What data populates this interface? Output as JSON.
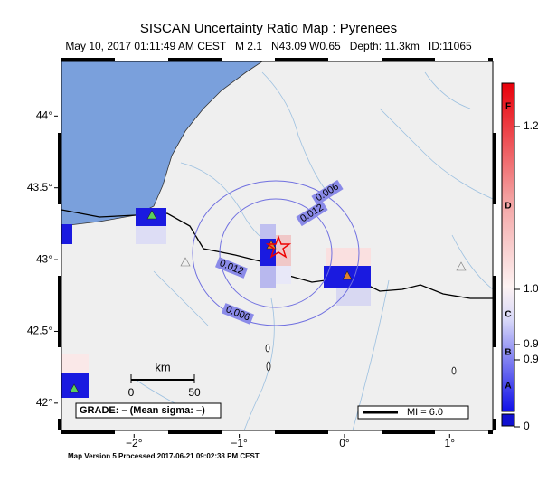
{
  "header": {
    "title": "SISCAN Uncertainty Ratio Map : Pyrenees",
    "subtitle": "May 10, 2017 01:11:49 AM CEST   M 2.1   N43.09 W0.65   Depth: 11.3km   ID:11065"
  },
  "map": {
    "xlim": [
      -2.69,
      1.41
    ],
    "ylim": [
      41.81,
      44.38
    ],
    "xticks": [
      {
        "value": -2,
        "label": "−2°"
      },
      {
        "value": -1,
        "label": "−1°"
      },
      {
        "value": 0,
        "label": "0°"
      },
      {
        "value": 1,
        "label": "1°"
      }
    ],
    "yticks": [
      {
        "value": 44,
        "label": "44°"
      },
      {
        "value": 43.5,
        "label": "43.5°"
      },
      {
        "value": 43,
        "label": "43°"
      },
      {
        "value": 42.5,
        "label": "42.5°"
      },
      {
        "value": 42,
        "label": "42°"
      }
    ],
    "contour_labels": [
      "0.006",
      "0.012",
      "0.012",
      "0.006"
    ],
    "scale": {
      "unit": "km",
      "labels": [
        "0",
        "50"
      ]
    },
    "grade": "GRADE: – (Mean sigma: –)",
    "magnitude": "MI = 6.0"
  },
  "colorbar": {
    "grades": [
      "F",
      "D",
      "C",
      "B",
      "A"
    ],
    "labels": [
      "1.2",
      "1.0",
      "0.9",
      "0.9",
      "0"
    ]
  },
  "footer": "Map Version 5 Processed 2017-06-21 09:02:38 PM CEST"
}
